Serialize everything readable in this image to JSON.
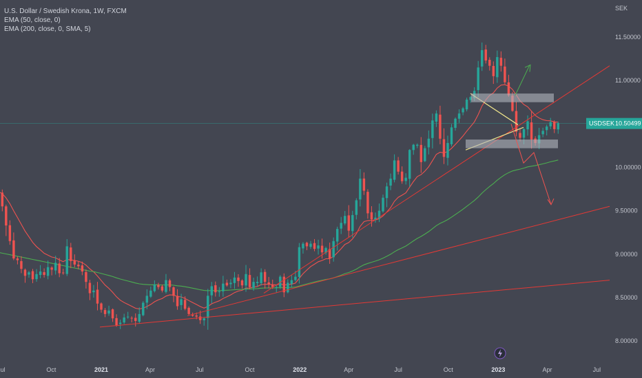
{
  "legend": {
    "title": "U.S. Dollar / Swedish Krona, 1W, FXCM",
    "ema1": "EMA (50, close, 0)",
    "ema2": "EMA (200, close, 0, SMA, 5)"
  },
  "currency_label": "SEK",
  "colors": {
    "background": "#434651",
    "up": "#26a69a",
    "down": "#ef5350",
    "ema50": "#ef5350",
    "ema200": "#4caf50",
    "trend": "#e53935",
    "triangle": "#f0e68c",
    "zone": "#b2b5be",
    "arrow_up": "#4caf50",
    "arrow_down": "#ef5350",
    "price_line": "#26a69a"
  },
  "chart_data": {
    "type": "candlestick",
    "symbol": "USDSEK",
    "timeframe": "1W",
    "current_price": "10.50499",
    "y_ticks": [
      {
        "label": "11.50000",
        "value": 11.5
      },
      {
        "label": "11.00000",
        "value": 11.0
      },
      {
        "label": "10.00000",
        "value": 10.0
      },
      {
        "label": "9.50000",
        "value": 9.5
      },
      {
        "label": "9.00000",
        "value": 9.0
      },
      {
        "label": "8.50000",
        "value": 8.5
      },
      {
        "label": "8.00000",
        "value": 8.0
      }
    ],
    "x_ticks": [
      {
        "label": "Jul",
        "date": "2020-07-01",
        "bold": false
      },
      {
        "label": "Oct",
        "date": "2020-10-01",
        "bold": false
      },
      {
        "label": "2021",
        "date": "2021-01-01",
        "bold": true
      },
      {
        "label": "Apr",
        "date": "2021-04-01",
        "bold": false
      },
      {
        "label": "Jul",
        "date": "2021-07-01",
        "bold": false
      },
      {
        "label": "Oct",
        "date": "2021-10-01",
        "bold": false
      },
      {
        "label": "2022",
        "date": "2022-01-01",
        "bold": true
      },
      {
        "label": "Apr",
        "date": "2022-04-01",
        "bold": false
      },
      {
        "label": "Jul",
        "date": "2022-07-01",
        "bold": false
      },
      {
        "label": "Oct",
        "date": "2022-10-01",
        "bold": false
      },
      {
        "label": "2023",
        "date": "2023-01-01",
        "bold": true
      },
      {
        "label": "Apr",
        "date": "2023-04-01",
        "bold": false
      },
      {
        "label": "Jul",
        "date": "2023-07-01",
        "bold": false
      }
    ],
    "closes": [
      9.72,
      9.55,
      9.33,
      9.15,
      8.95,
      8.93,
      8.83,
      8.75,
      8.79,
      8.71,
      8.77,
      8.8,
      8.76,
      8.85,
      8.82,
      8.9,
      8.78,
      8.78,
      9.09,
      8.92,
      8.88,
      8.86,
      8.8,
      8.68,
      8.55,
      8.58,
      8.43,
      8.36,
      8.31,
      8.35,
      8.26,
      8.18,
      8.21,
      8.27,
      8.28,
      8.26,
      8.23,
      8.31,
      8.44,
      8.52,
      8.58,
      8.65,
      8.62,
      8.58,
      8.7,
      8.62,
      8.52,
      8.4,
      8.48,
      8.37,
      8.31,
      8.29,
      8.28,
      8.24,
      8.26,
      8.52,
      8.63,
      8.56,
      8.57,
      8.66,
      8.64,
      8.67,
      8.73,
      8.69,
      8.64,
      8.77,
      8.62,
      8.68,
      8.68,
      8.79,
      8.68,
      8.65,
      8.62,
      8.62,
      8.74,
      8.56,
      8.67,
      8.7,
      8.74,
      9.08,
      9.12,
      9.09,
      9.12,
      9.06,
      9.1,
      9.02,
      9.07,
      8.95,
      9.15,
      9.29,
      9.36,
      9.44,
      9.27,
      9.45,
      9.62,
      9.87,
      9.73,
      9.47,
      9.4,
      9.42,
      9.5,
      9.65,
      9.78,
      9.87,
      10.08,
      9.95,
      9.84,
      9.88,
      10.2,
      10.26,
      10.26,
      10.06,
      10.22,
      10.33,
      10.54,
      10.62,
      10.33,
      10.12,
      10.28,
      10.46,
      10.56,
      10.62,
      10.68,
      10.78,
      10.81,
      10.88,
      11.15,
      11.35,
      11.23,
      11.17,
      11.05,
      11.27,
      11.17,
      10.98,
      10.83,
      10.65,
      10.41,
      10.34,
      10.44,
      10.53,
      10.32,
      10.28,
      10.37,
      10.42,
      10.47,
      10.52,
      10.44,
      10.51
    ]
  },
  "drawings": {
    "note": "",
    "target_up": 11.18,
    "target_down": 9.57
  }
}
